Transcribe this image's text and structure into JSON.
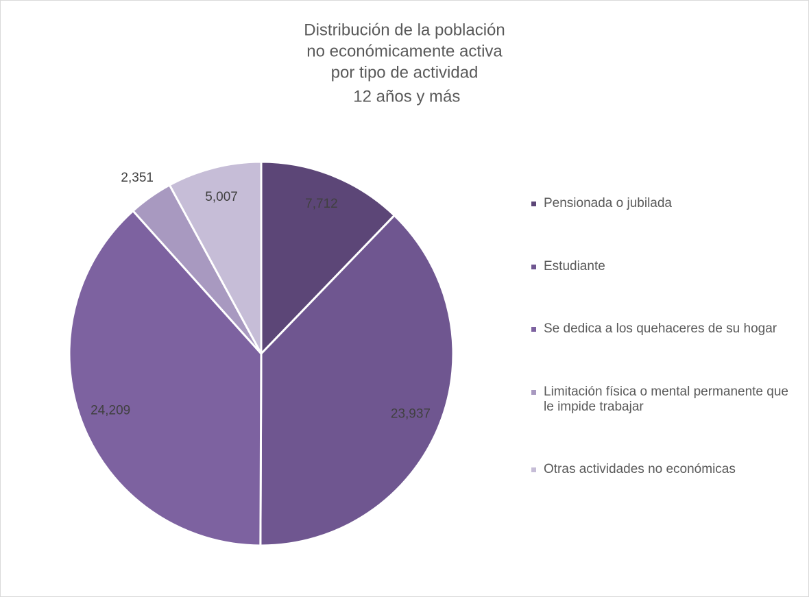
{
  "chart_data": {
    "type": "pie",
    "title": [
      "Distribución de la población",
      "no económicamente activa",
      "por tipo de actividad",
      " 12 años y más"
    ],
    "categories": [
      "Pensionada o jubilada",
      "Estudiante",
      "Se dedica a los quehaceres de su hogar",
      "Limitación física o mental permanente que le impide trabajar",
      "Otras actividades no económicas"
    ],
    "values": [
      7712,
      23937,
      24209,
      2351,
      5007
    ],
    "value_labels": [
      "7,712",
      "23,937",
      "24,209",
      "2,351",
      "5,007"
    ],
    "colors": [
      "#5c4677",
      "#6f5690",
      "#7d62a0",
      "#a899c0",
      "#c6bdd7"
    ],
    "legend": "right"
  }
}
